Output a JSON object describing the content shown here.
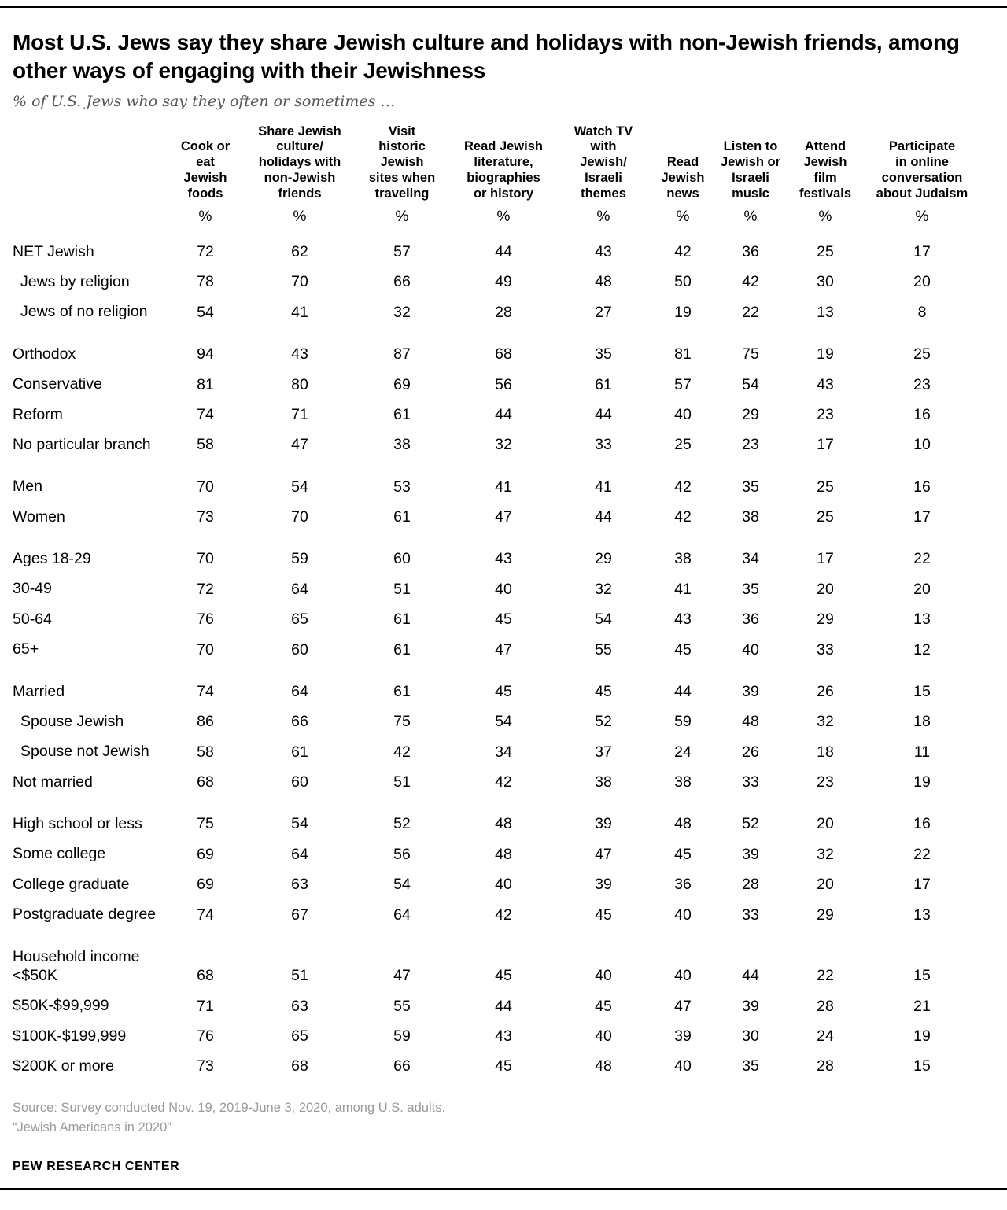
{
  "header": {
    "title": "Most U.S. Jews say they share Jewish culture and holidays with non-Jewish friends, among other ways of engaging with their Jewishness",
    "subtitle": "% of U.S. Jews who say they often or sometimes …"
  },
  "chart_data": {
    "type": "table",
    "unit": "%",
    "columns": [
      "Cook or\neat\nJewish\nfoods",
      "Share Jewish\nculture/\nholidays with\nnon-Jewish\nfriends",
      "Visit\nhistoric\nJewish\nsites when\ntraveling",
      "Read Jewish\nliterature,\nbiographies\nor history",
      "Watch TV\nwith\nJewish/\nIsraeli\nthemes",
      "Read\nJewish\nnews",
      "Listen to\nJewish or\nIsraeli\nmusic",
      "Attend\nJewish\nfilm\nfestivals",
      "Participate\nin online\nconversation\nabout Judaism"
    ],
    "groups": [
      {
        "rows": [
          {
            "label": "NET Jewish",
            "indent": false,
            "values": [
              72,
              62,
              57,
              44,
              43,
              42,
              36,
              25,
              17
            ]
          },
          {
            "label": "Jews by religion",
            "indent": true,
            "values": [
              78,
              70,
              66,
              49,
              48,
              50,
              42,
              30,
              20
            ]
          },
          {
            "label": "Jews of no religion",
            "indent": true,
            "values": [
              54,
              41,
              32,
              28,
              27,
              19,
              22,
              13,
              8
            ]
          }
        ]
      },
      {
        "rows": [
          {
            "label": "Orthodox",
            "indent": false,
            "values": [
              94,
              43,
              87,
              68,
              35,
              81,
              75,
              19,
              25
            ]
          },
          {
            "label": "Conservative",
            "indent": false,
            "values": [
              81,
              80,
              69,
              56,
              61,
              57,
              54,
              43,
              23
            ]
          },
          {
            "label": "Reform",
            "indent": false,
            "values": [
              74,
              71,
              61,
              44,
              44,
              40,
              29,
              23,
              16
            ]
          },
          {
            "label": "No particular branch",
            "indent": false,
            "values": [
              58,
              47,
              38,
              32,
              33,
              25,
              23,
              17,
              10
            ]
          }
        ]
      },
      {
        "rows": [
          {
            "label": "Men",
            "indent": false,
            "values": [
              70,
              54,
              53,
              41,
              41,
              42,
              35,
              25,
              16
            ]
          },
          {
            "label": "Women",
            "indent": false,
            "values": [
              73,
              70,
              61,
              47,
              44,
              42,
              38,
              25,
              17
            ]
          }
        ]
      },
      {
        "rows": [
          {
            "label": "Ages 18-29",
            "indent": false,
            "values": [
              70,
              59,
              60,
              43,
              29,
              38,
              34,
              17,
              22
            ]
          },
          {
            "label": "30-49",
            "indent": false,
            "values": [
              72,
              64,
              51,
              40,
              32,
              41,
              35,
              20,
              20
            ]
          },
          {
            "label": "50-64",
            "indent": false,
            "values": [
              76,
              65,
              61,
              45,
              54,
              43,
              36,
              29,
              13
            ]
          },
          {
            "label": "65+",
            "indent": false,
            "values": [
              70,
              60,
              61,
              47,
              55,
              45,
              40,
              33,
              12
            ]
          }
        ]
      },
      {
        "rows": [
          {
            "label": "Married",
            "indent": false,
            "values": [
              74,
              64,
              61,
              45,
              45,
              44,
              39,
              26,
              15
            ]
          },
          {
            "label": "Spouse Jewish",
            "indent": true,
            "values": [
              86,
              66,
              75,
              54,
              52,
              59,
              48,
              32,
              18
            ]
          },
          {
            "label": "Spouse not Jewish",
            "indent": true,
            "values": [
              58,
              61,
              42,
              34,
              37,
              24,
              26,
              18,
              11
            ]
          },
          {
            "label": "Not married",
            "indent": false,
            "values": [
              68,
              60,
              51,
              42,
              38,
              38,
              33,
              23,
              19
            ]
          }
        ]
      },
      {
        "rows": [
          {
            "label": "High school or less",
            "indent": false,
            "values": [
              75,
              54,
              52,
              48,
              39,
              48,
              52,
              20,
              16
            ]
          },
          {
            "label": "Some college",
            "indent": false,
            "values": [
              69,
              64,
              56,
              48,
              47,
              45,
              39,
              32,
              22
            ]
          },
          {
            "label": "College graduate",
            "indent": false,
            "values": [
              69,
              63,
              54,
              40,
              39,
              36,
              28,
              20,
              17
            ]
          },
          {
            "label": "Postgraduate degree",
            "indent": false,
            "values": [
              74,
              67,
              64,
              42,
              45,
              40,
              33,
              29,
              13
            ]
          }
        ]
      },
      {
        "rows": [
          {
            "label": "Household income\n<$50K",
            "indent": false,
            "values": [
              68,
              51,
              47,
              45,
              40,
              40,
              44,
              22,
              15
            ]
          },
          {
            "label": "$50K-$99,999",
            "indent": false,
            "values": [
              71,
              63,
              55,
              44,
              45,
              47,
              39,
              28,
              21
            ]
          },
          {
            "label": "$100K-$199,999",
            "indent": false,
            "values": [
              76,
              65,
              59,
              43,
              40,
              39,
              30,
              24,
              19
            ]
          },
          {
            "label": "$200K or more",
            "indent": false,
            "values": [
              73,
              68,
              66,
              45,
              48,
              40,
              35,
              28,
              15
            ]
          }
        ]
      }
    ]
  },
  "footer": {
    "source_line1": "Source: Survey conducted Nov. 19, 2019-June 3, 2020, among U.S. adults.",
    "source_line2": "“Jewish Americans in 2020”",
    "brand": "PEW RESEARCH CENTER"
  }
}
